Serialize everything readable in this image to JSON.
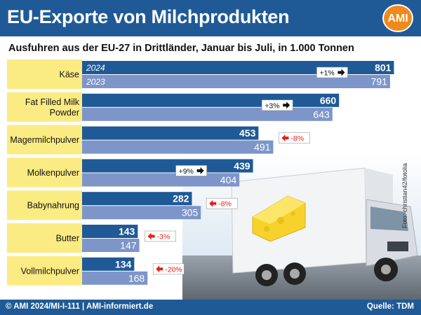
{
  "header": {
    "title": "EU-Exporte von Milchprodukten",
    "logo_text": "AMI"
  },
  "footer": {
    "left": "© AMI 2024/MI-I-111 | AMI-informiert.de",
    "right": "Quelle: TDM"
  },
  "photo_credit": "Foto: christian42/fotolia",
  "chart_data": {
    "type": "bar",
    "orientation": "horizontal",
    "title": "Ausfuhren aus der EU-27 in Drittländer, Januar bis Juli, in 1.000 Tonnen",
    "categories": [
      "Käse",
      "Fat Filled Milk Powder",
      "Magermilchpulver",
      "Molkenpulver",
      "Babynahrung",
      "Butter",
      "Vollmilchpulver"
    ],
    "category_lines": [
      [
        "Käse"
      ],
      [
        "Fat Filled Milk",
        "Powder"
      ],
      [
        "Magermilchpulver"
      ],
      [
        "Molkenpulver"
      ],
      [
        "Babynahrung"
      ],
      [
        "Butter"
      ],
      [
        "Vollmilchpulver"
      ]
    ],
    "series": [
      {
        "name": "2024",
        "values": [
          801,
          660,
          453,
          439,
          282,
          143,
          134
        ],
        "color": "#1f5a96"
      },
      {
        "name": "2023",
        "values": [
          791,
          643,
          491,
          404,
          305,
          147,
          168
        ],
        "color": "#7d95c9"
      }
    ],
    "changes": [
      "+1%",
      "+3%",
      "-8%",
      "+9%",
      "-8%",
      "-3%",
      "-20%"
    ],
    "change_colors": {
      "up": "#111111",
      "down": "#e3211b"
    },
    "xlim": [
      0,
      820
    ],
    "grid": false,
    "legend": "inside first bar"
  }
}
